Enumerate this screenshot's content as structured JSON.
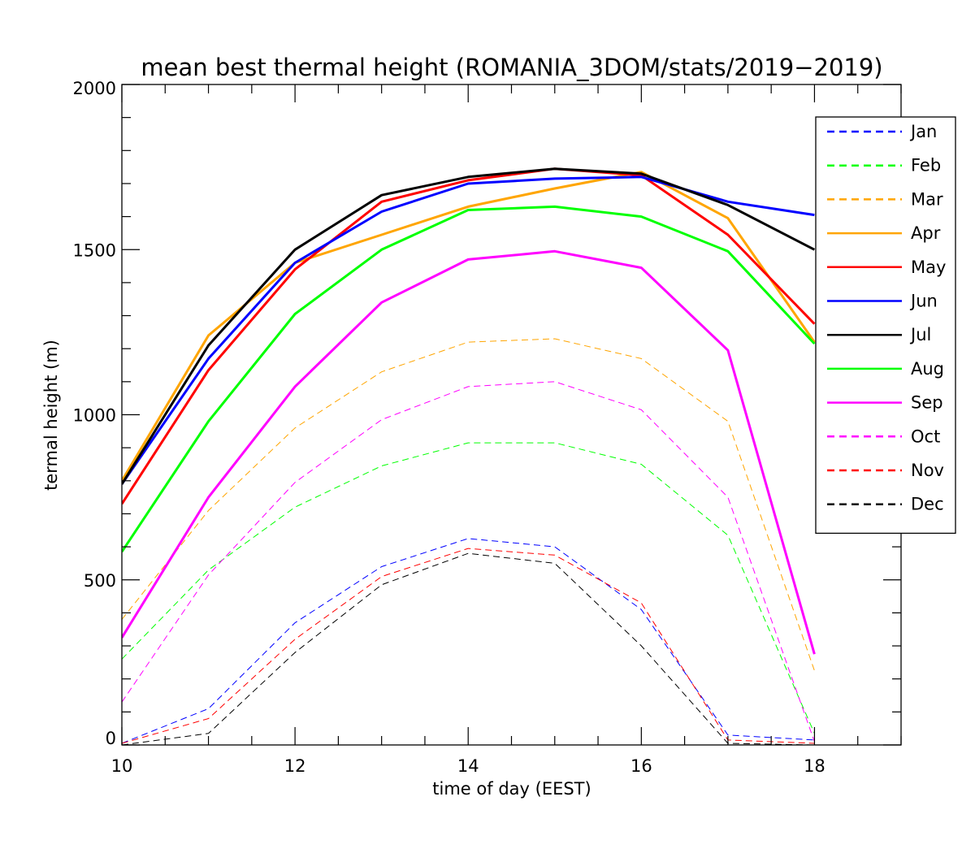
{
  "chart_data": {
    "type": "line",
    "title": "mean best thermal height (ROMANIA_3DOM/stats/2019−2019)",
    "xlabel": "time of day (EEST)",
    "ylabel": "termal height (m)",
    "xlim": [
      10,
      19
    ],
    "ylim": [
      0,
      2000
    ],
    "x_ticks": [
      "10",
      "12",
      "14",
      "16",
      "18"
    ],
    "y_ticks": [
      "0",
      "500",
      "1000",
      "1500",
      "2000"
    ],
    "legend_position": "top-right",
    "x": [
      10,
      11,
      12,
      13,
      14,
      15,
      16,
      17,
      18
    ],
    "series": [
      {
        "name": "Jan",
        "color": "#0000ff",
        "dashed": true,
        "values": [
          5,
          110,
          370,
          540,
          625,
          600,
          410,
          30,
          15
        ]
      },
      {
        "name": "Feb",
        "color": "#00ff00",
        "dashed": true,
        "values": [
          260,
          530,
          720,
          845,
          915,
          915,
          850,
          635,
          35
        ]
      },
      {
        "name": "Mar",
        "color": "#ffa500",
        "dashed": true,
        "values": [
          380,
          710,
          960,
          1130,
          1220,
          1230,
          1170,
          980,
          225
        ]
      },
      {
        "name": "Apr",
        "color": "#ffa500",
        "dashed": false,
        "values": [
          800,
          1240,
          1460,
          1545,
          1630,
          1685,
          1735,
          1595,
          1220
        ]
      },
      {
        "name": "May",
        "color": "#ff0000",
        "dashed": false,
        "values": [
          730,
          1135,
          1440,
          1645,
          1710,
          1745,
          1725,
          1545,
          1275
        ]
      },
      {
        "name": "Jun",
        "color": "#0000ff",
        "dashed": false,
        "values": [
          790,
          1170,
          1460,
          1615,
          1700,
          1715,
          1720,
          1645,
          1605
        ]
      },
      {
        "name": "Jul",
        "color": "#000000",
        "dashed": false,
        "values": [
          790,
          1210,
          1500,
          1665,
          1720,
          1745,
          1730,
          1635,
          1500
        ]
      },
      {
        "name": "Aug",
        "color": "#00ff00",
        "dashed": false,
        "values": [
          585,
          980,
          1305,
          1500,
          1620,
          1630,
          1600,
          1495,
          1215
        ]
      },
      {
        "name": "Sep",
        "color": "#ff00ff",
        "dashed": false,
        "values": [
          325,
          750,
          1085,
          1340,
          1470,
          1495,
          1445,
          1195,
          275
        ]
      },
      {
        "name": "Oct",
        "color": "#ff00ff",
        "dashed": true,
        "values": [
          130,
          515,
          795,
          985,
          1085,
          1100,
          1015,
          750,
          10
        ]
      },
      {
        "name": "Nov",
        "color": "#ff0000",
        "dashed": true,
        "values": [
          5,
          80,
          320,
          510,
          595,
          575,
          430,
          15,
          5
        ]
      },
      {
        "name": "Dec",
        "color": "#000000",
        "dashed": true,
        "values": [
          0,
          35,
          280,
          485,
          580,
          550,
          300,
          5,
          0
        ]
      }
    ]
  }
}
